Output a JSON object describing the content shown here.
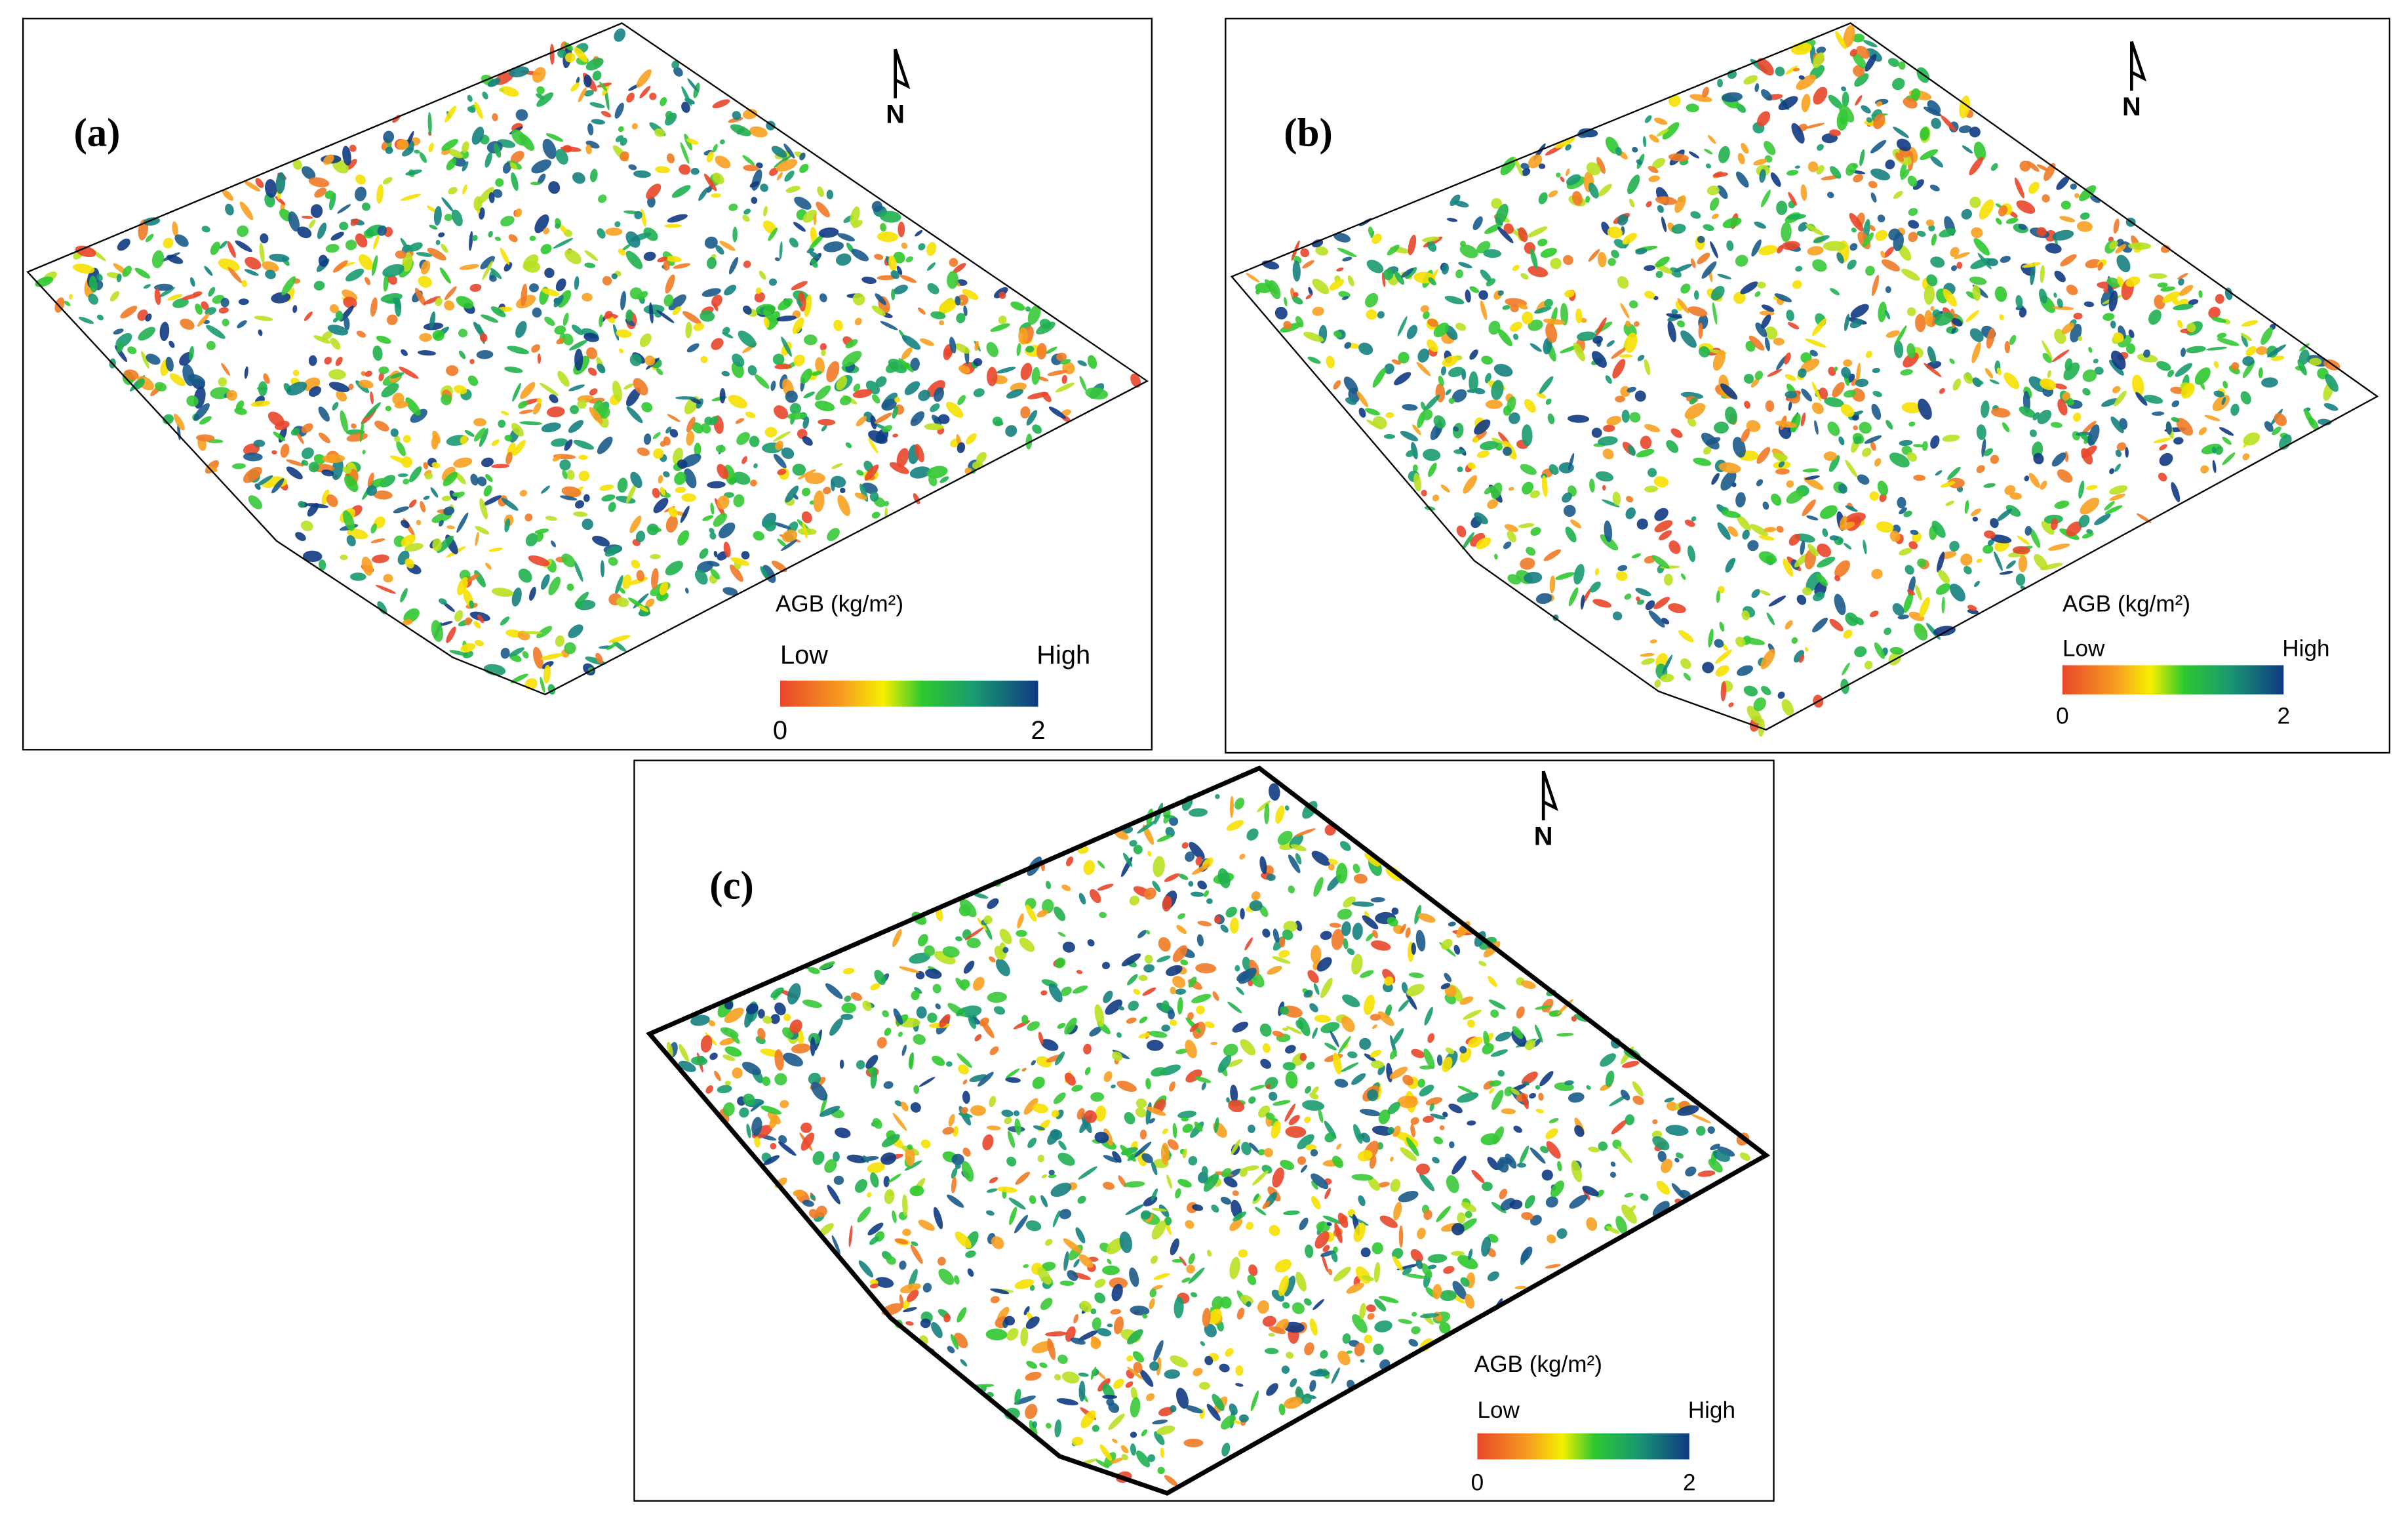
{
  "panels": [
    {
      "label": "(a)",
      "north": "N",
      "legend": {
        "title": "AGB (kg/m²)",
        "low": "Low",
        "high": "High",
        "ticks": [
          0,
          2
        ]
      }
    },
    {
      "label": "(b)",
      "north": "N",
      "legend": {
        "title": "AGB (kg/m²)",
        "low": "Low",
        "high": "High",
        "ticks": [
          0,
          2
        ]
      }
    },
    {
      "label": "(c)",
      "north": "N",
      "legend": {
        "title": "AGB (kg/m²)",
        "low": "Low",
        "high": "High",
        "ticks": [
          0,
          2
        ]
      }
    }
  ]
}
